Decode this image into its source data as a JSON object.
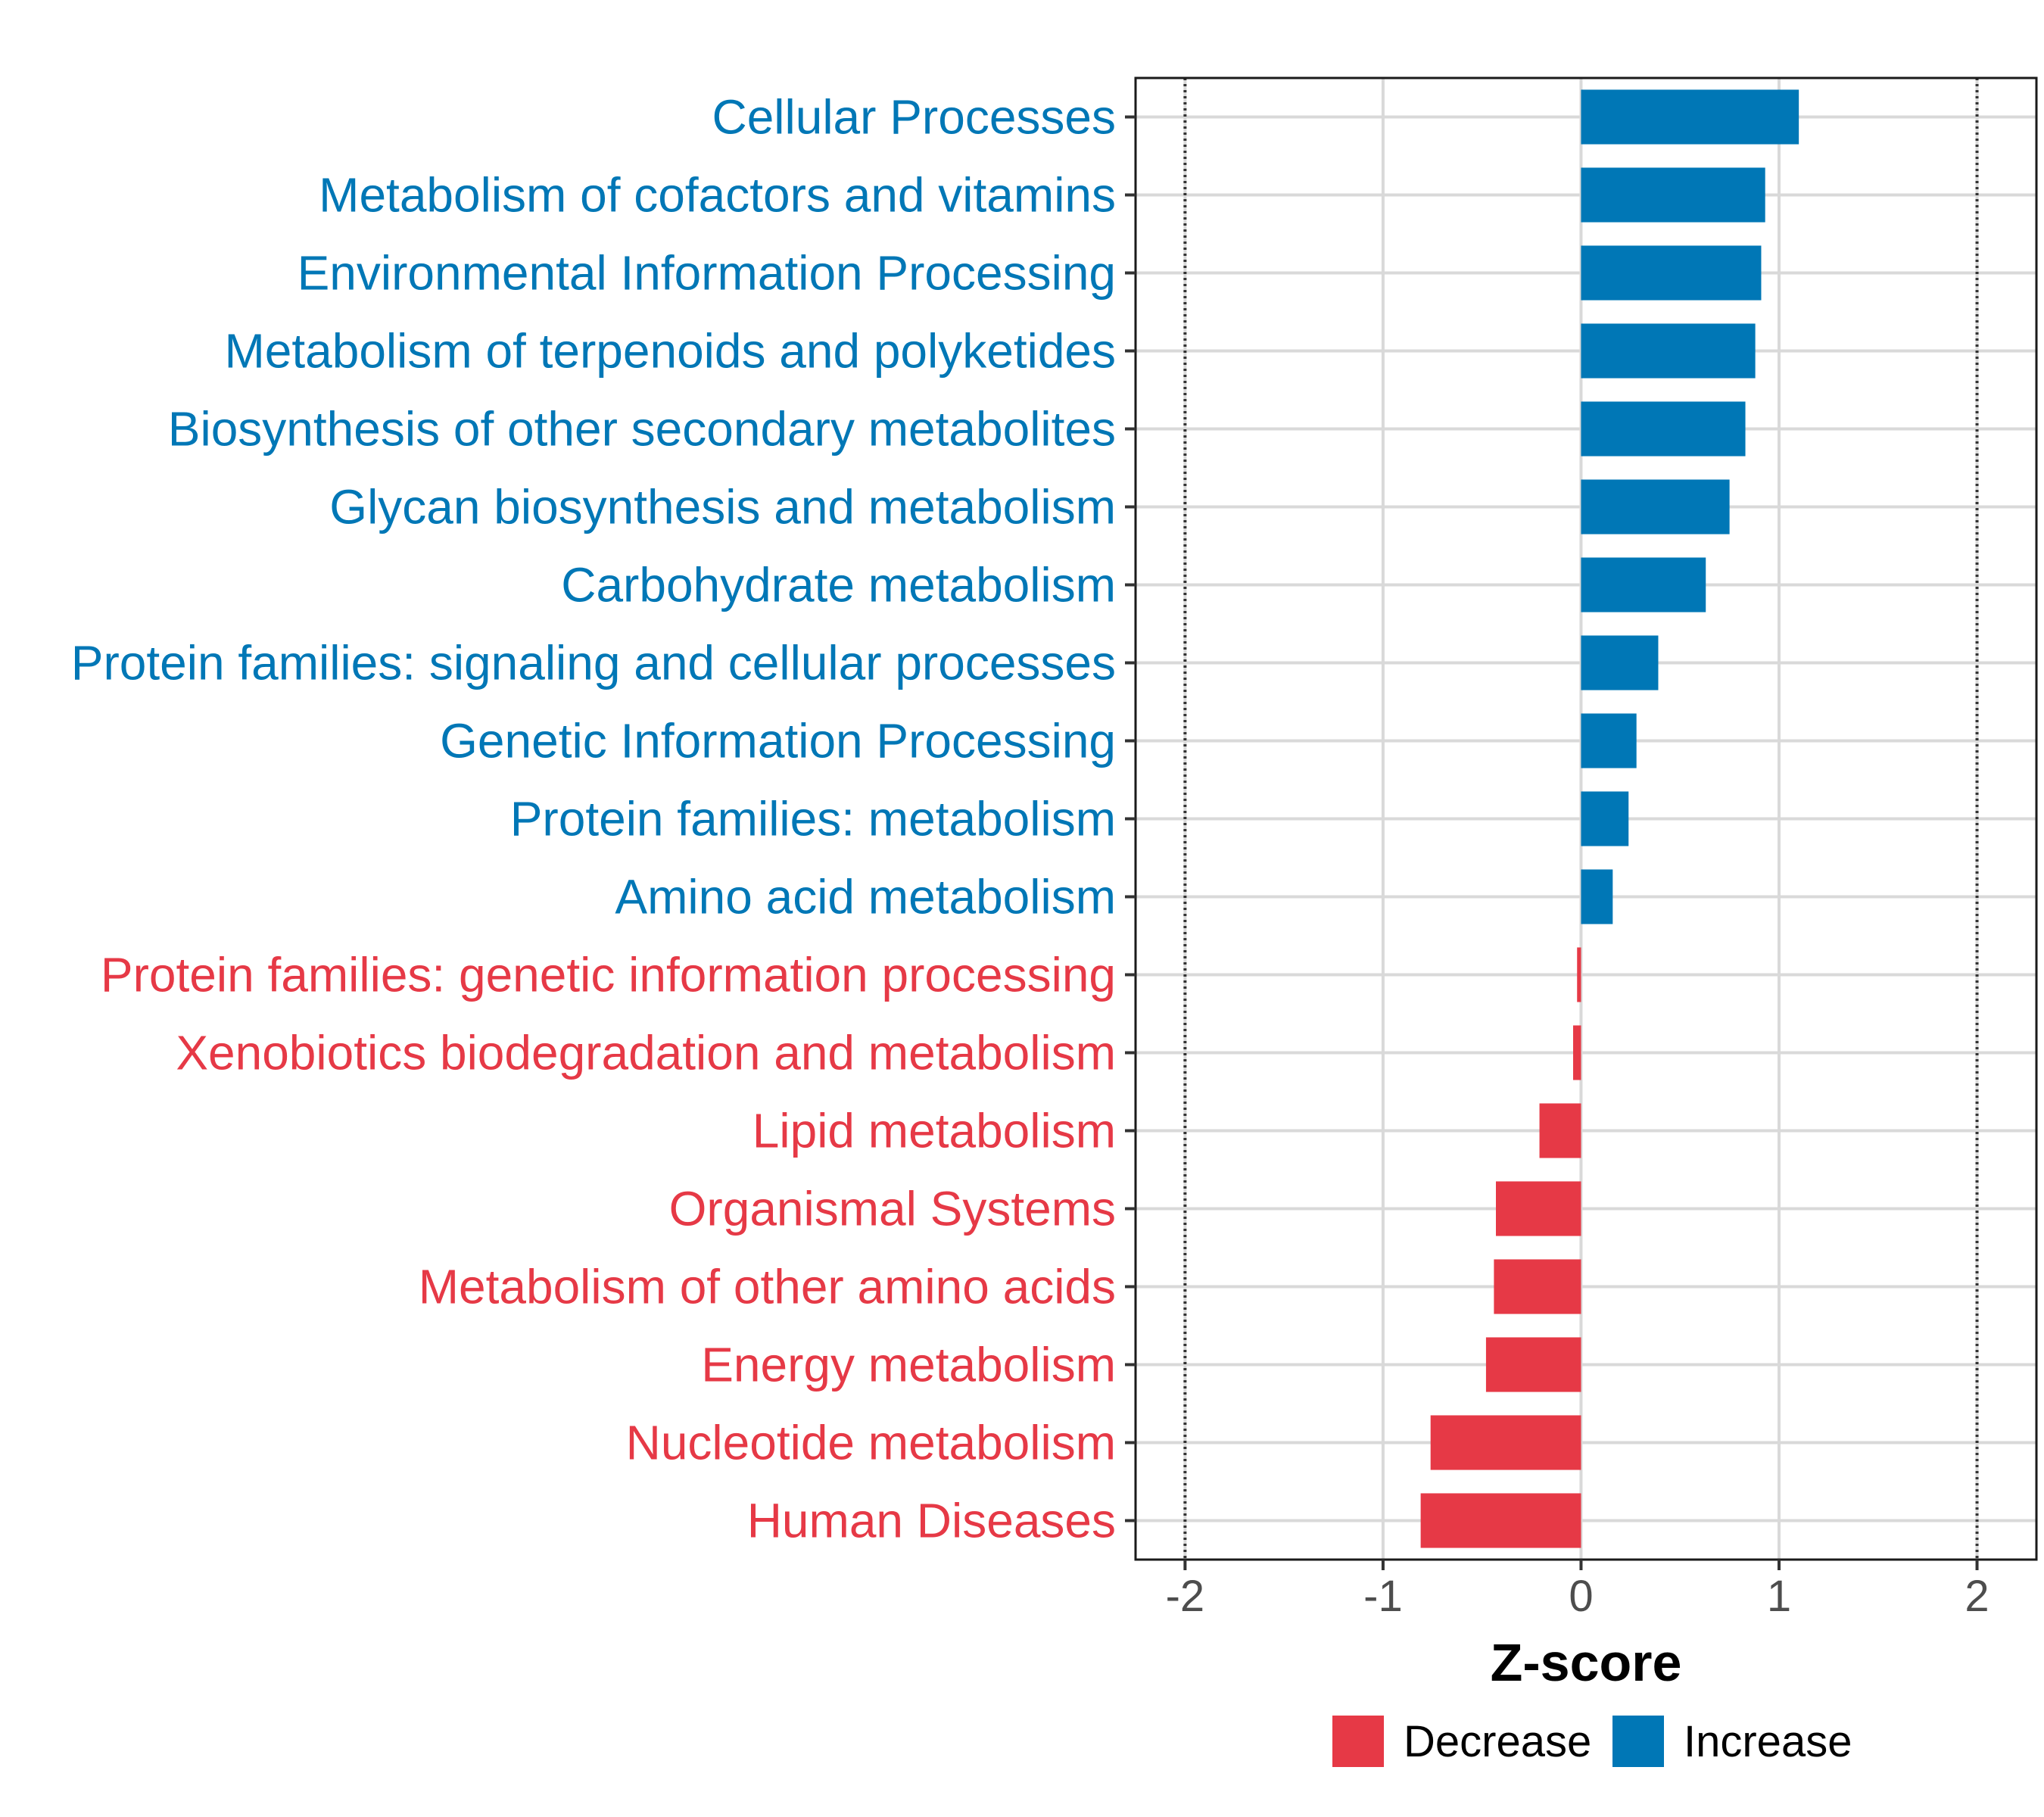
{
  "chart_data": {
    "type": "bar",
    "orientation": "horizontal",
    "title": "",
    "xlabel": "Z-score",
    "ylabel": "",
    "xlim": [
      -2.25,
      2.3
    ],
    "xticks": [
      -2,
      -1,
      0,
      1,
      2
    ],
    "xtick_labels": [
      "-2",
      "-1",
      "0",
      "1",
      "2"
    ],
    "reference_lines": [
      -2,
      2
    ],
    "grid": true,
    "legend_position": "bottom",
    "colors": {
      "Decrease": "#e63946",
      "Increase": "#0077b6"
    },
    "legend": [
      {
        "name": "Decrease",
        "color": "#e63946"
      },
      {
        "name": "Increase",
        "color": "#0077b6"
      }
    ],
    "categories": [
      "Cellular Processes",
      "Metabolism of cofactors and vitamins",
      "Environmental Information Processing",
      "Metabolism of terpenoids and polyketides",
      "Biosynthesis of other secondary metabolites",
      "Glycan biosynthesis and metabolism",
      "Carbohydrate metabolism",
      "Protein families: signaling and cellular processes",
      "Genetic Information Processing",
      "Protein families: metabolism",
      "Amino acid metabolism",
      "Protein families: genetic information processing",
      "Xenobiotics biodegradation and metabolism",
      "Lipid metabolism",
      "Organismal Systems",
      "Metabolism of other amino acids",
      "Energy metabolism",
      "Nucleotide metabolism",
      "Human Diseases"
    ],
    "values": [
      1.1,
      0.93,
      0.91,
      0.88,
      0.83,
      0.75,
      0.63,
      0.39,
      0.28,
      0.24,
      0.16,
      -0.02,
      -0.04,
      -0.21,
      -0.43,
      -0.44,
      -0.48,
      -0.76,
      -0.81
    ],
    "groups": [
      "Increase",
      "Increase",
      "Increase",
      "Increase",
      "Increase",
      "Increase",
      "Increase",
      "Increase",
      "Increase",
      "Increase",
      "Increase",
      "Decrease",
      "Decrease",
      "Decrease",
      "Decrease",
      "Decrease",
      "Decrease",
      "Decrease",
      "Decrease"
    ]
  }
}
